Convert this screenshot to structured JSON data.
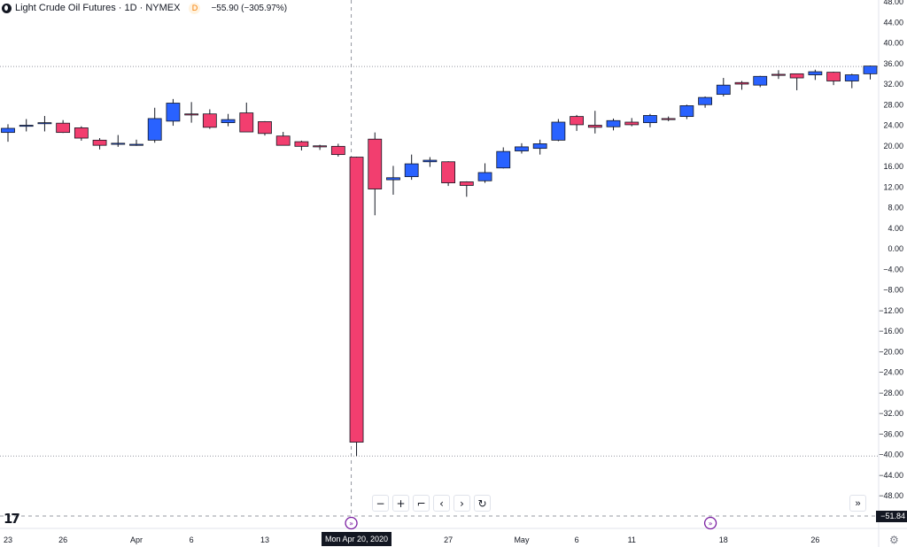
{
  "header": {
    "symbol": "Light Crude Oil Futures · 1D · NYMEX",
    "badge": "D",
    "change": "−55.90 (−305.97%)"
  },
  "crosshair": {
    "date_label": "Mon Apr 20, 2020",
    "price_label": "−51.84"
  },
  "toolbar": {
    "zoom_out": "−",
    "zoom_in": "+",
    "reset_scale": "⌐",
    "scroll_left": "‹",
    "scroll_right": "›",
    "reset": "↻",
    "go_latest": "»"
  },
  "settings_icon": "gear-icon",
  "colors": {
    "up": "#2962ff",
    "down": "#f23e6f",
    "background": "#ffffff"
  },
  "chart_data": {
    "type": "candlestick",
    "title": "Light Crude Oil Futures · 1D · NYMEX",
    "ylim": [
      -52,
      48
    ],
    "y_ticks": [
      "48.00",
      "44.00",
      "40.00",
      "36.00",
      "32.00",
      "28.00",
      "24.00",
      "20.00",
      "16.00",
      "12.00",
      "8.00",
      "4.00",
      "0.00",
      "−4.00",
      "−8.00",
      "−12.00",
      "−16.00",
      "−20.00",
      "−24.00",
      "−28.00",
      "−32.00",
      "−36.00",
      "−40.00",
      "−44.00",
      "−48.00"
    ],
    "x_tick_labels": [
      "23",
      "26",
      "Apr",
      "6",
      "13",
      "27",
      "May",
      "6",
      "11",
      "18",
      "26"
    ],
    "candles": [
      {
        "date": "2020-03-23",
        "open": 22.6,
        "high": 24.2,
        "low": 20.8,
        "close": 23.4
      },
      {
        "date": "2020-03-24",
        "open": 24.0,
        "high": 25.2,
        "low": 22.8,
        "close": 24.0
      },
      {
        "date": "2020-03-25",
        "open": 24.5,
        "high": 25.8,
        "low": 22.8,
        "close": 24.5
      },
      {
        "date": "2020-03-26",
        "open": 24.4,
        "high": 25.0,
        "low": 22.5,
        "close": 22.6
      },
      {
        "date": "2020-03-27",
        "open": 23.5,
        "high": 23.8,
        "low": 21.0,
        "close": 21.5
      },
      {
        "date": "2020-03-30",
        "open": 21.1,
        "high": 21.5,
        "low": 19.3,
        "close": 20.1
      },
      {
        "date": "2020-03-31",
        "open": 20.3,
        "high": 22.1,
        "low": 19.8,
        "close": 20.5
      },
      {
        "date": "2020-04-01",
        "open": 20.1,
        "high": 21.2,
        "low": 20.0,
        "close": 20.3
      },
      {
        "date": "2020-04-02",
        "open": 21.1,
        "high": 27.4,
        "low": 20.6,
        "close": 25.3
      },
      {
        "date": "2020-04-03",
        "open": 24.8,
        "high": 29.1,
        "low": 23.9,
        "close": 28.3
      },
      {
        "date": "2020-04-06",
        "open": 26.2,
        "high": 28.5,
        "low": 24.5,
        "close": 26.1
      },
      {
        "date": "2020-04-07",
        "open": 26.2,
        "high": 27.1,
        "low": 23.3,
        "close": 23.6
      },
      {
        "date": "2020-04-08",
        "open": 24.5,
        "high": 26.2,
        "low": 23.8,
        "close": 25.1
      },
      {
        "date": "2020-04-09",
        "open": 26.4,
        "high": 28.4,
        "low": 22.9,
        "close": 22.7
      },
      {
        "date": "2020-04-13",
        "open": 24.7,
        "high": 24.8,
        "low": 22.0,
        "close": 22.4
      },
      {
        "date": "2020-04-14",
        "open": 21.9,
        "high": 22.7,
        "low": 20.1,
        "close": 20.1
      },
      {
        "date": "2020-04-15",
        "open": 20.8,
        "high": 21.0,
        "low": 19.1,
        "close": 19.9
      },
      {
        "date": "2020-04-16",
        "open": 20.0,
        "high": 20.2,
        "low": 19.2,
        "close": 19.8
      },
      {
        "date": "2020-04-17",
        "open": 19.9,
        "high": 20.4,
        "low": 17.9,
        "close": 18.3
      },
      {
        "date": "2020-04-20",
        "open": 17.8,
        "high": 17.9,
        "low": -40.3,
        "close": -37.6
      },
      {
        "date": "2020-04-21",
        "open": 21.3,
        "high": 22.6,
        "low": 6.5,
        "close": 11.6
      },
      {
        "date": "2020-04-22",
        "open": 13.4,
        "high": 16.1,
        "low": 10.5,
        "close": 13.8
      },
      {
        "date": "2020-04-23",
        "open": 14.0,
        "high": 18.3,
        "low": 13.4,
        "close": 16.5
      },
      {
        "date": "2020-04-24",
        "open": 16.9,
        "high": 17.8,
        "low": 15.9,
        "close": 17.2
      },
      {
        "date": "2020-04-27",
        "open": 16.9,
        "high": 17.0,
        "low": 12.2,
        "close": 12.8
      },
      {
        "date": "2020-04-28",
        "open": 13.0,
        "high": 13.1,
        "low": 10.1,
        "close": 12.3
      },
      {
        "date": "2020-04-29",
        "open": 13.2,
        "high": 16.6,
        "low": 12.8,
        "close": 14.8
      },
      {
        "date": "2020-04-30",
        "open": 15.7,
        "high": 19.7,
        "low": 15.6,
        "close": 18.9
      },
      {
        "date": "2020-05-01",
        "open": 19.0,
        "high": 20.5,
        "low": 18.5,
        "close": 19.8
      },
      {
        "date": "2020-05-04",
        "open": 19.5,
        "high": 21.2,
        "low": 18.3,
        "close": 20.4
      },
      {
        "date": "2020-05-05",
        "open": 21.1,
        "high": 25.2,
        "low": 20.9,
        "close": 24.6
      },
      {
        "date": "2020-05-06",
        "open": 25.7,
        "high": 26.0,
        "low": 22.9,
        "close": 24.1
      },
      {
        "date": "2020-05-07",
        "open": 24.0,
        "high": 26.8,
        "low": 22.4,
        "close": 23.6
      },
      {
        "date": "2020-05-08",
        "open": 23.7,
        "high": 25.3,
        "low": 23.0,
        "close": 24.9
      },
      {
        "date": "2020-05-11",
        "open": 24.6,
        "high": 25.4,
        "low": 23.8,
        "close": 24.1
      },
      {
        "date": "2020-05-12",
        "open": 24.5,
        "high": 26.2,
        "low": 23.6,
        "close": 25.9
      },
      {
        "date": "2020-05-13",
        "open": 25.3,
        "high": 25.7,
        "low": 24.8,
        "close": 25.2
      },
      {
        "date": "2020-05-14",
        "open": 25.7,
        "high": 28.0,
        "low": 25.2,
        "close": 27.8
      },
      {
        "date": "2020-05-15",
        "open": 28.0,
        "high": 29.6,
        "low": 27.4,
        "close": 29.4
      },
      {
        "date": "2020-05-18",
        "open": 30.0,
        "high": 33.2,
        "low": 29.6,
        "close": 31.8
      },
      {
        "date": "2020-05-19",
        "open": 32.3,
        "high": 32.6,
        "low": 30.9,
        "close": 32.0
      },
      {
        "date": "2020-05-20",
        "open": 31.8,
        "high": 33.6,
        "low": 31.4,
        "close": 33.5
      },
      {
        "date": "2020-05-21",
        "open": 33.9,
        "high": 34.7,
        "low": 33.0,
        "close": 33.7
      },
      {
        "date": "2020-05-22",
        "open": 34.0,
        "high": 34.0,
        "low": 30.8,
        "close": 33.2
      },
      {
        "date": "2020-05-26",
        "open": 33.8,
        "high": 34.8,
        "low": 32.8,
        "close": 34.4
      },
      {
        "date": "2020-05-27",
        "open": 34.3,
        "high": 34.4,
        "low": 31.8,
        "close": 32.6
      },
      {
        "date": "2020-05-28",
        "open": 32.6,
        "high": 34.0,
        "low": 31.2,
        "close": 33.8
      },
      {
        "date": "2020-05-29",
        "open": 34.0,
        "high": 35.6,
        "low": 32.9,
        "close": 35.5
      }
    ]
  }
}
